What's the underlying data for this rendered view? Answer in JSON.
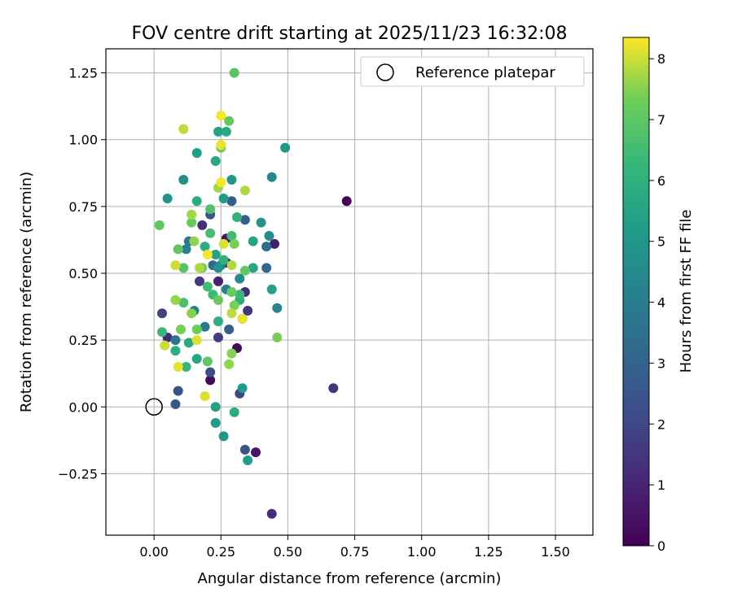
{
  "chart_data": {
    "type": "scatter",
    "title": "FOV centre drift starting at 2025/11/23 16:32:08",
    "xlabel": "Angular distance from reference (arcmin)",
    "ylabel": "Rotation from reference (arcmin)",
    "xlim": [
      -0.18,
      1.64
    ],
    "ylim": [
      -0.48,
      1.34
    ],
    "xticks": [
      0.0,
      0.25,
      0.5,
      0.75,
      1.0,
      1.25,
      1.5
    ],
    "xtick_labels": [
      "0.00",
      "0.25",
      "0.50",
      "0.75",
      "1.00",
      "1.25",
      "1.50"
    ],
    "yticks": [
      -0.25,
      0.0,
      0.25,
      0.5,
      0.75,
      1.0,
      1.25
    ],
    "ytick_labels": [
      "−0.25",
      "0.00",
      "0.25",
      "0.50",
      "0.75",
      "1.00",
      "1.25"
    ],
    "grid": true,
    "legend": {
      "position": "top-right",
      "entries": [
        "Reference platepar"
      ]
    },
    "reference_point": {
      "x": 0.0,
      "y": 0.0,
      "label": "Reference platepar"
    },
    "colorbar": {
      "label": "Hours from first FF file",
      "range": [
        0,
        8.35
      ],
      "ticks": [
        0,
        1,
        2,
        3,
        4,
        5,
        6,
        7,
        8
      ],
      "tick_labels": [
        "0",
        "1",
        "2",
        "3",
        "4",
        "5",
        "6",
        "7",
        "8"
      ]
    },
    "points": [
      {
        "x": 0.72,
        "y": 0.77,
        "h": 0.1
      },
      {
        "x": 0.21,
        "y": 0.1,
        "h": 0.2
      },
      {
        "x": 0.31,
        "y": 0.22,
        "h": 0.3
      },
      {
        "x": 0.38,
        "y": -0.17,
        "h": 0.6
      },
      {
        "x": 0.27,
        "y": 0.54,
        "h": 0.2
      },
      {
        "x": 0.45,
        "y": 0.61,
        "h": 0.8
      },
      {
        "x": 0.05,
        "y": 0.26,
        "h": 1.1
      },
      {
        "x": 0.44,
        "y": -0.4,
        "h": 1.2
      },
      {
        "x": 0.24,
        "y": 0.47,
        "h": 0.9
      },
      {
        "x": 0.67,
        "y": 0.07,
        "h": 1.4
      },
      {
        "x": 0.03,
        "y": 0.35,
        "h": 1.8
      },
      {
        "x": 0.17,
        "y": 0.47,
        "h": 1.6
      },
      {
        "x": 0.18,
        "y": 0.68,
        "h": 1.3
      },
      {
        "x": 0.27,
        "y": 0.63,
        "h": 0.5
      },
      {
        "x": 0.35,
        "y": 0.36,
        "h": 1.5
      },
      {
        "x": 0.34,
        "y": 0.43,
        "h": 1.2
      },
      {
        "x": 0.24,
        "y": 0.26,
        "h": 1.7
      },
      {
        "x": 0.21,
        "y": 0.13,
        "h": 2.2
      },
      {
        "x": 0.32,
        "y": 0.05,
        "h": 2.0
      },
      {
        "x": 0.34,
        "y": -0.16,
        "h": 2.4
      },
      {
        "x": 0.09,
        "y": 0.06,
        "h": 2.3
      },
      {
        "x": 0.08,
        "y": 0.01,
        "h": 2.6
      },
      {
        "x": 0.21,
        "y": 0.72,
        "h": 2.5
      },
      {
        "x": 0.28,
        "y": 0.29,
        "h": 2.8
      },
      {
        "x": 0.34,
        "y": 0.7,
        "h": 2.9
      },
      {
        "x": 0.42,
        "y": 0.52,
        "h": 3.1
      },
      {
        "x": 0.42,
        "y": 0.6,
        "h": 3.4
      },
      {
        "x": 0.29,
        "y": 0.77,
        "h": 2.7
      },
      {
        "x": 0.22,
        "y": 0.53,
        "h": 3.3
      },
      {
        "x": 0.19,
        "y": 0.3,
        "h": 3.9
      },
      {
        "x": 0.25,
        "y": 0.53,
        "h": 3.6
      },
      {
        "x": 0.33,
        "y": 0.33,
        "h": 3.2
      },
      {
        "x": 0.08,
        "y": 0.25,
        "h": 3.7
      },
      {
        "x": 0.12,
        "y": 0.59,
        "h": 4.1
      },
      {
        "x": 0.13,
        "y": 0.62,
        "h": 3.8
      },
      {
        "x": 0.15,
        "y": 0.36,
        "h": 4.2
      },
      {
        "x": 0.46,
        "y": 0.37,
        "h": 4.3
      },
      {
        "x": 0.43,
        "y": 0.64,
        "h": 4.6
      },
      {
        "x": 0.4,
        "y": 0.69,
        "h": 4.8
      },
      {
        "x": 0.32,
        "y": 0.48,
        "h": 4.5
      },
      {
        "x": 0.11,
        "y": 0.85,
        "h": 4.7
      },
      {
        "x": 0.05,
        "y": 0.78,
        "h": 4.9
      },
      {
        "x": 0.29,
        "y": 0.85,
        "h": 5.0
      },
      {
        "x": 0.26,
        "y": 0.78,
        "h": 5.2
      },
      {
        "x": 0.44,
        "y": 0.86,
        "h": 4.4
      },
      {
        "x": 0.49,
        "y": 0.97,
        "h": 5.0
      },
      {
        "x": 0.16,
        "y": 0.95,
        "h": 5.3
      },
      {
        "x": 0.23,
        "y": 0.92,
        "h": 5.6
      },
      {
        "x": 0.24,
        "y": 1.03,
        "h": 5.5
      },
      {
        "x": 0.27,
        "y": 1.03,
        "h": 5.7
      },
      {
        "x": 0.33,
        "y": 0.07,
        "h": 5.1
      },
      {
        "x": 0.23,
        "y": 0.0,
        "h": 5.4
      },
      {
        "x": 0.23,
        "y": -0.06,
        "h": 5.2
      },
      {
        "x": 0.3,
        "y": -0.02,
        "h": 5.8
      },
      {
        "x": 0.26,
        "y": -0.11,
        "h": 5.0
      },
      {
        "x": 0.35,
        "y": -0.2,
        "h": 5.3
      },
      {
        "x": 0.16,
        "y": 0.18,
        "h": 5.6
      },
      {
        "x": 0.08,
        "y": 0.21,
        "h": 5.9
      },
      {
        "x": 0.13,
        "y": 0.24,
        "h": 5.7
      },
      {
        "x": 0.24,
        "y": 0.32,
        "h": 5.9
      },
      {
        "x": 0.32,
        "y": 0.4,
        "h": 5.8
      },
      {
        "x": 0.37,
        "y": 0.52,
        "h": 5.6
      },
      {
        "x": 0.26,
        "y": 0.55,
        "h": 6.0
      },
      {
        "x": 0.37,
        "y": 0.62,
        "h": 5.5
      },
      {
        "x": 0.44,
        "y": 0.44,
        "h": 5.4
      },
      {
        "x": 0.19,
        "y": 0.6,
        "h": 5.9
      },
      {
        "x": 0.16,
        "y": 0.77,
        "h": 5.8
      },
      {
        "x": 0.31,
        "y": 0.71,
        "h": 6.1
      },
      {
        "x": 0.12,
        "y": 0.15,
        "h": 6.2
      },
      {
        "x": 0.03,
        "y": 0.28,
        "h": 6.3
      },
      {
        "x": 0.22,
        "y": 0.42,
        "h": 6.4
      },
      {
        "x": 0.29,
        "y": 0.64,
        "h": 6.5
      },
      {
        "x": 0.21,
        "y": 0.65,
        "h": 6.6
      },
      {
        "x": 0.21,
        "y": 0.74,
        "h": 6.8
      },
      {
        "x": 0.02,
        "y": 0.68,
        "h": 7.0
      },
      {
        "x": 0.3,
        "y": 1.25,
        "h": 6.9
      },
      {
        "x": 0.28,
        "y": 1.07,
        "h": 7.1
      },
      {
        "x": 0.11,
        "y": 0.39,
        "h": 6.7
      },
      {
        "x": 0.09,
        "y": 0.59,
        "h": 7.0
      },
      {
        "x": 0.14,
        "y": 0.69,
        "h": 7.2
      },
      {
        "x": 0.18,
        "y": 0.52,
        "h": 7.3
      },
      {
        "x": 0.29,
        "y": 0.43,
        "h": 7.2
      },
      {
        "x": 0.3,
        "y": 0.38,
        "h": 7.4
      },
      {
        "x": 0.25,
        "y": 0.97,
        "h": 7.3
      },
      {
        "x": 0.34,
        "y": 0.51,
        "h": 7.1
      },
      {
        "x": 0.46,
        "y": 0.26,
        "h": 7.4
      },
      {
        "x": 0.29,
        "y": 0.2,
        "h": 7.5
      },
      {
        "x": 0.2,
        "y": 0.17,
        "h": 7.0
      },
      {
        "x": 0.14,
        "y": 0.35,
        "h": 7.5
      },
      {
        "x": 0.08,
        "y": 0.4,
        "h": 7.6
      },
      {
        "x": 0.16,
        "y": 0.29,
        "h": 7.3
      },
      {
        "x": 0.28,
        "y": 0.16,
        "h": 7.6
      },
      {
        "x": 0.1,
        "y": 0.29,
        "h": 7.4
      },
      {
        "x": 0.24,
        "y": 0.82,
        "h": 7.7
      },
      {
        "x": 0.34,
        "y": 0.81,
        "h": 7.8
      },
      {
        "x": 0.11,
        "y": 1.04,
        "h": 7.9
      },
      {
        "x": 0.14,
        "y": 0.72,
        "h": 7.7
      },
      {
        "x": 0.17,
        "y": 0.52,
        "h": 7.8
      },
      {
        "x": 0.29,
        "y": 0.35,
        "h": 7.9
      },
      {
        "x": 0.08,
        "y": 0.53,
        "h": 8.0
      },
      {
        "x": 0.04,
        "y": 0.23,
        "h": 8.0
      },
      {
        "x": 0.26,
        "y": 0.61,
        "h": 8.1
      },
      {
        "x": 0.19,
        "y": 0.04,
        "h": 8.1
      },
      {
        "x": 0.25,
        "y": 0.98,
        "h": 8.2
      },
      {
        "x": 0.25,
        "y": 1.09,
        "h": 8.3
      },
      {
        "x": 0.33,
        "y": 0.33,
        "h": 8.2
      },
      {
        "x": 0.25,
        "y": 0.84,
        "h": 8.3
      },
      {
        "x": 0.2,
        "y": 0.57,
        "h": 8.3
      },
      {
        "x": 0.16,
        "y": 0.25,
        "h": 8.1
      },
      {
        "x": 0.09,
        "y": 0.15,
        "h": 8.2
      },
      {
        "x": 0.29,
        "y": 0.53,
        "h": 7.8
      },
      {
        "x": 0.11,
        "y": 0.52,
        "h": 6.9
      },
      {
        "x": 0.2,
        "y": 0.45,
        "h": 6.5
      },
      {
        "x": 0.24,
        "y": 0.4,
        "h": 7.2
      },
      {
        "x": 0.15,
        "y": 0.62,
        "h": 7.6
      },
      {
        "x": 0.3,
        "y": 0.61,
        "h": 7.4
      },
      {
        "x": 0.23,
        "y": 0.57,
        "h": 5.5
      },
      {
        "x": 0.24,
        "y": 0.52,
        "h": 4.9
      },
      {
        "x": 0.27,
        "y": 0.44,
        "h": 4.1
      },
      {
        "x": 0.32,
        "y": 0.42,
        "h": 6.3
      }
    ]
  }
}
